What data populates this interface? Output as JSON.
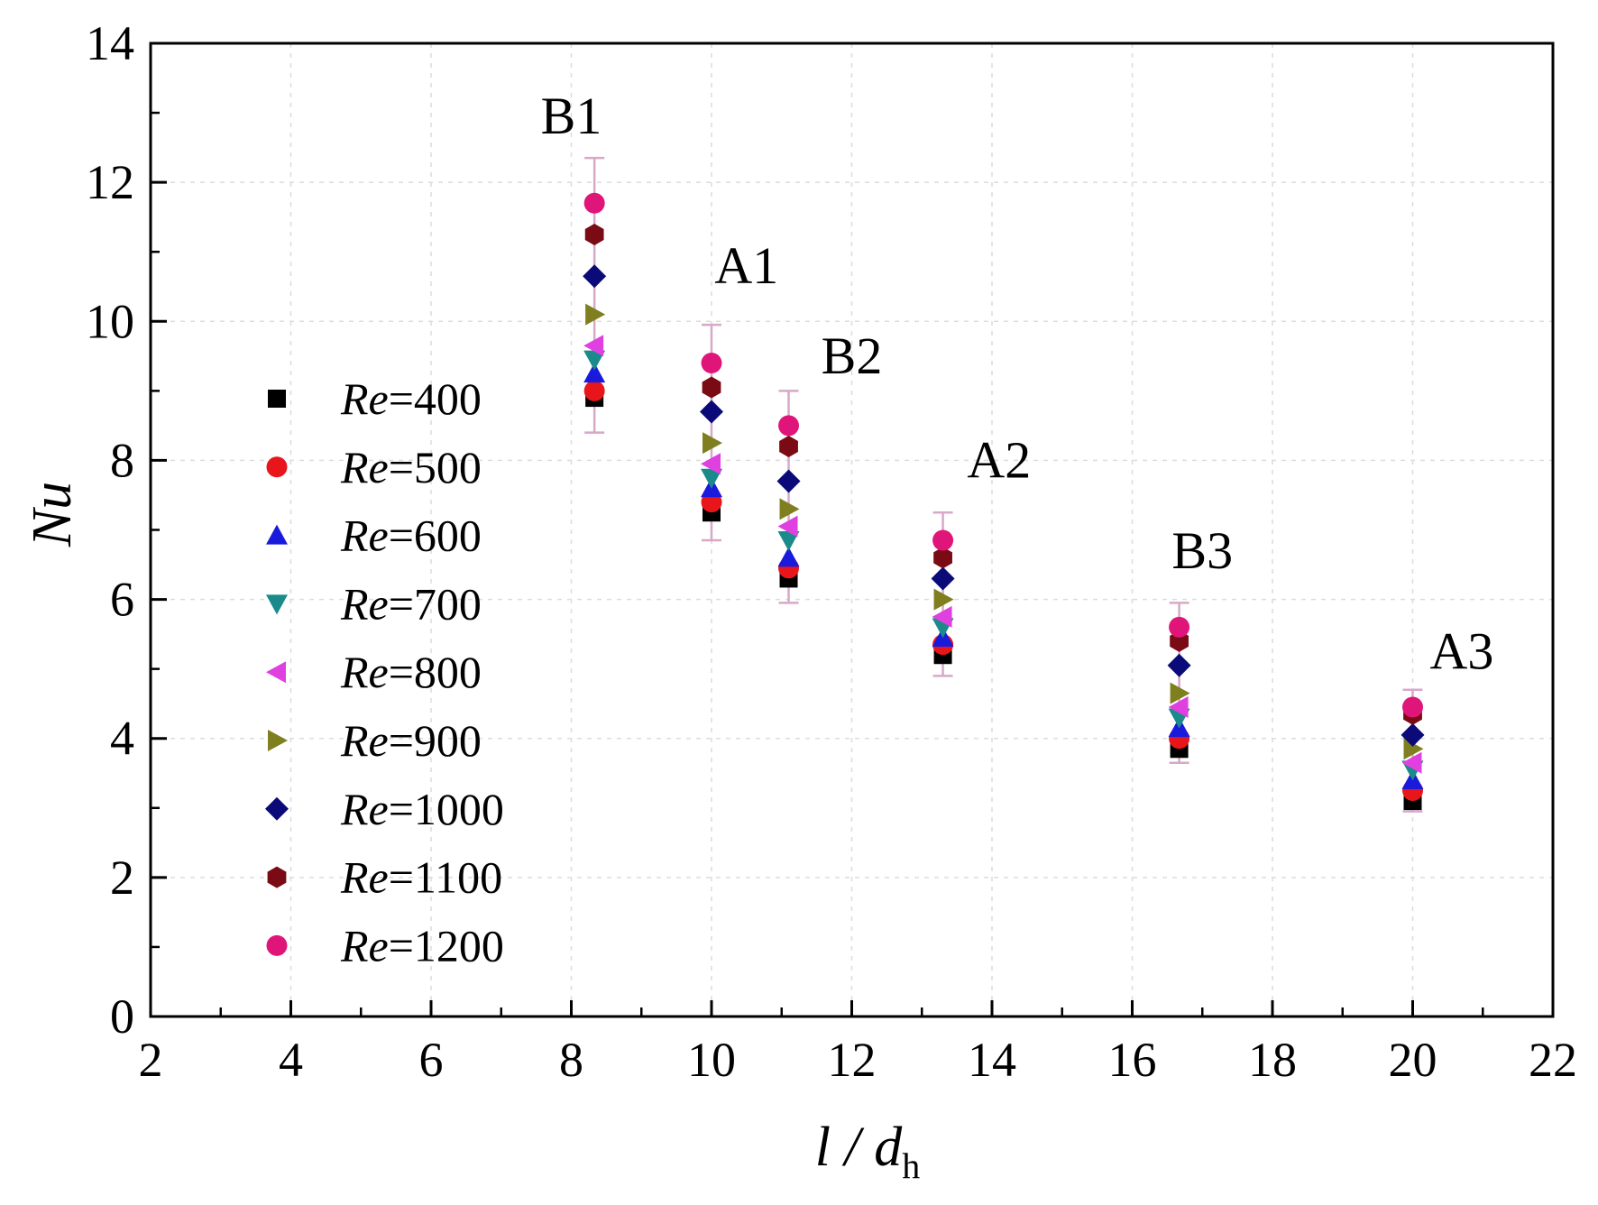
{
  "chart_data": {
    "type": "scatter",
    "xlabel": {
      "main": "l / d",
      "sub": "h"
    },
    "ylabel": "Nu",
    "xlim": [
      2,
      22
    ],
    "ylim": [
      0,
      14
    ],
    "xticks": [
      "2",
      "4",
      "6",
      "8",
      "10",
      "12",
      "14",
      "16",
      "18",
      "20",
      "22"
    ],
    "yticks": [
      "0",
      "2",
      "4",
      "6",
      "8",
      "10",
      "12",
      "14"
    ],
    "grid": true,
    "legend_position": "left",
    "x": [
      8.33,
      10.0,
      11.1,
      13.3,
      16.67,
      20.0
    ],
    "group_labels": [
      {
        "text": "B1",
        "x": 8.0,
        "y": 12.7
      },
      {
        "text": "A1",
        "x": 10.5,
        "y": 10.55
      },
      {
        "text": "B2",
        "x": 12.0,
        "y": 9.25
      },
      {
        "text": "A2",
        "x": 14.1,
        "y": 7.75
      },
      {
        "text": "B3",
        "x": 17.0,
        "y": 6.45
      },
      {
        "text": "A3",
        "x": 20.7,
        "y": 5.0
      }
    ],
    "series": [
      {
        "name": "Re=400",
        "name_prefix": "Re",
        "name_value": "=400",
        "marker": "square",
        "color": "#000000",
        "values": [
          8.9,
          7.25,
          6.3,
          5.2,
          3.85,
          3.1
        ]
      },
      {
        "name": "Re=500",
        "name_prefix": "Re",
        "name_value": "=500",
        "marker": "circle",
        "color": "#e8161b",
        "values": [
          9.0,
          7.4,
          6.45,
          5.35,
          4.0,
          3.25
        ]
      },
      {
        "name": "Re=600",
        "name_prefix": "Re",
        "name_value": "=600",
        "marker": "triangle-up",
        "color": "#1a1adc",
        "values": [
          9.25,
          7.6,
          6.6,
          5.45,
          4.15,
          3.4
        ]
      },
      {
        "name": "Re=700",
        "name_prefix": "Re",
        "name_value": "=700",
        "marker": "triangle-down",
        "color": "#1a8a8a",
        "values": [
          9.45,
          7.75,
          6.85,
          5.6,
          4.3,
          3.55
        ]
      },
      {
        "name": "Re=800",
        "name_prefix": "Re",
        "name_value": "=800",
        "marker": "triangle-left",
        "color": "#e040e0",
        "values": [
          9.65,
          7.95,
          7.05,
          5.75,
          4.45,
          3.65
        ]
      },
      {
        "name": "Re=900",
        "name_prefix": "Re",
        "name_value": "=900",
        "marker": "triangle-right",
        "color": "#7f7f20",
        "values": [
          10.1,
          8.25,
          7.3,
          6.0,
          4.65,
          3.85
        ]
      },
      {
        "name": "Re=1000",
        "name_prefix": "Re",
        "name_value": "=1000",
        "marker": "diamond",
        "color": "#0a0a78",
        "values": [
          10.65,
          8.7,
          7.7,
          6.3,
          5.05,
          4.05
        ]
      },
      {
        "name": "Re=1100",
        "name_prefix": "Re",
        "name_value": "=1100",
        "marker": "hexagon",
        "color": "#7a0a14",
        "values": [
          11.25,
          9.05,
          8.2,
          6.6,
          5.4,
          4.35
        ]
      },
      {
        "name": "Re=1200",
        "name_prefix": "Re",
        "name_value": "=1200",
        "marker": "circle",
        "color": "#e0157a",
        "values": [
          11.7,
          9.4,
          8.5,
          6.85,
          5.6,
          4.45
        ]
      }
    ],
    "error_bars": {
      "color": "#d8a8c8",
      "groups": [
        {
          "x": 8.33,
          "low": 8.4,
          "high": 12.35
        },
        {
          "x": 10.0,
          "low": 6.85,
          "high": 9.95
        },
        {
          "x": 11.1,
          "low": 5.95,
          "high": 9.0
        },
        {
          "x": 13.3,
          "low": 4.9,
          "high": 7.25
        },
        {
          "x": 16.67,
          "low": 3.65,
          "high": 5.95
        },
        {
          "x": 20.0,
          "low": 2.95,
          "high": 4.7
        }
      ]
    }
  }
}
